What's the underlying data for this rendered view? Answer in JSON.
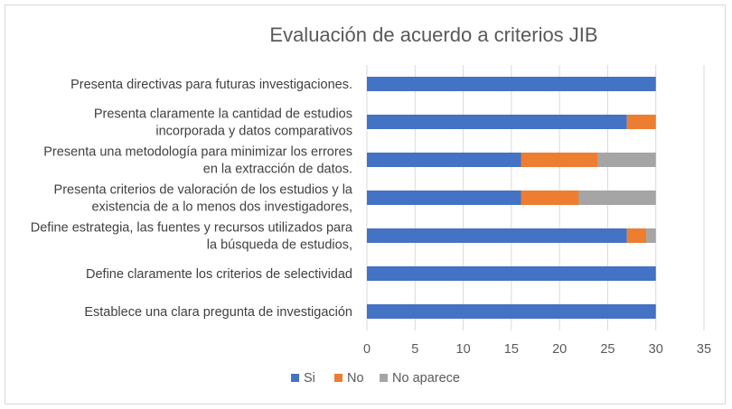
{
  "chart_data": {
    "type": "bar",
    "orientation": "horizontal",
    "stacked": true,
    "title": "Evaluación de  acuerdo a criterios JIB",
    "xlim": [
      0,
      35
    ],
    "xticks": [
      "0",
      "5",
      "10",
      "15",
      "20",
      "25",
      "30",
      "35"
    ],
    "grid": true,
    "legend_position": "bottom",
    "categories": [
      [
        "Presenta directivas para futuras investigaciones."
      ],
      [
        "Presenta claramente la cantidad de estudios",
        "incorporada y  datos comparativos"
      ],
      [
        "Presenta una metodología para  minimizar los errores",
        "en la extracción de datos."
      ],
      [
        "Presenta criterios de valoración de los estudios y  la",
        "existencia de a lo menos dos investigadores,"
      ],
      [
        "Define  estrategia, las fuentes y recursos utilizados para",
        "la búsqueda de estudios,"
      ],
      [
        "Define  claramente los criterios de selectividad"
      ],
      [
        "Establece una clara pregunta de investigación"
      ]
    ],
    "series": [
      {
        "name": "Si",
        "color": "#4472C4",
        "values": [
          30,
          27,
          16,
          16,
          27,
          30,
          30
        ]
      },
      {
        "name": "No",
        "color": "#ED7D31",
        "values": [
          0,
          3,
          8,
          6,
          2,
          0,
          0
        ]
      },
      {
        "name": "No aparece",
        "color": "#A5A5A5",
        "values": [
          0,
          0,
          6,
          8,
          1,
          0,
          0
        ]
      }
    ]
  }
}
